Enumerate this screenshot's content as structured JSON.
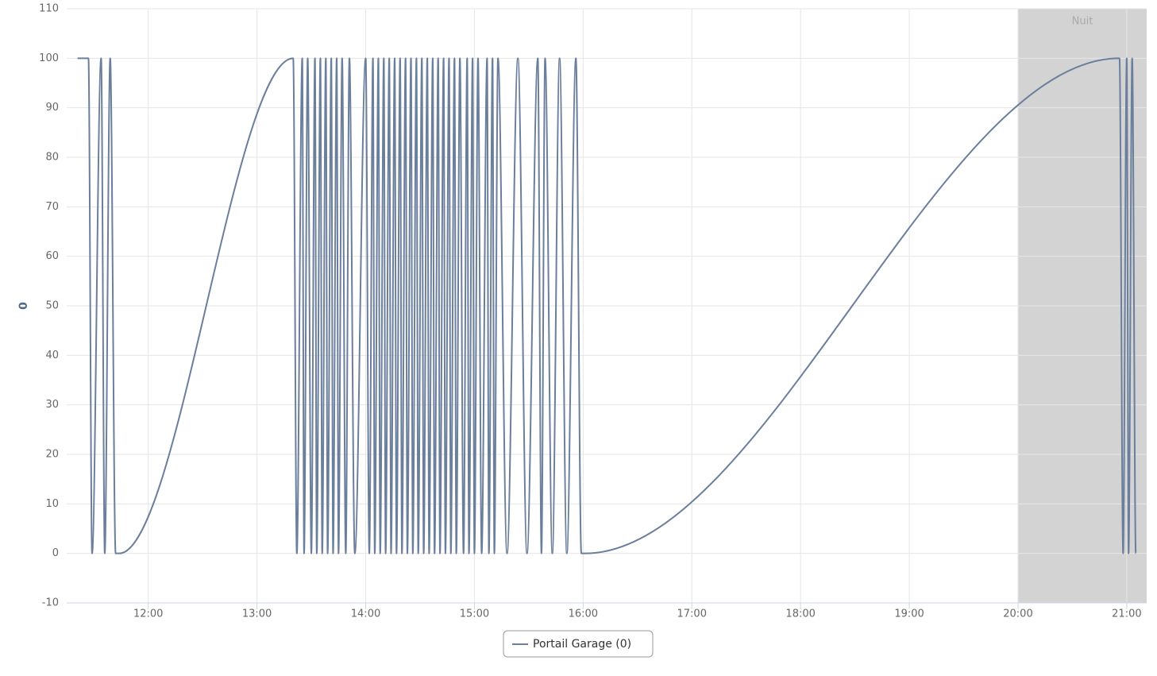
{
  "chart_data": {
    "type": "line",
    "y_label": "0",
    "xlim": [
      "11:15",
      "21:11"
    ],
    "xticks": [
      "12:00",
      "13:00",
      "14:00",
      "15:00",
      "16:00",
      "17:00",
      "18:00",
      "19:00",
      "20:00",
      "21:00"
    ],
    "ylim": [
      -10,
      110
    ],
    "yticks": [
      -10,
      0,
      10,
      20,
      30,
      40,
      50,
      60,
      70,
      80,
      90,
      100,
      110
    ],
    "grid": true,
    "bands": [
      {
        "label": "Nuit",
        "from": "20:00",
        "to": "21:11",
        "color": "#d3d3d3"
      }
    ],
    "x": [
      "11:21",
      "11:27",
      "11:29",
      "11:34",
      "11:36",
      "11:39",
      "11:42",
      "11:44",
      "13:20",
      "13:22",
      "13:25",
      "13:26",
      "13:28",
      "13:30",
      "13:32",
      "13:33",
      "13:35",
      "13:36",
      "13:38",
      "13:39",
      "13:41",
      "13:42",
      "13:44",
      "13:45",
      "13:47",
      "13:49",
      "13:51",
      "13:54",
      "14:00",
      "14:02",
      "14:04",
      "14:05",
      "14:07",
      "14:08",
      "14:10",
      "14:11",
      "14:13",
      "14:14",
      "14:16",
      "14:17",
      "14:19",
      "14:20",
      "14:22",
      "14:23",
      "14:25",
      "14:26",
      "14:28",
      "14:29",
      "14:31",
      "14:32",
      "14:34",
      "14:35",
      "14:37",
      "14:38",
      "14:40",
      "14:41",
      "14:43",
      "14:44",
      "14:46",
      "14:47",
      "14:49",
      "14:50",
      "14:52",
      "14:54",
      "14:56",
      "14:57",
      "14:59",
      "15:00",
      "15:02",
      "15:04",
      "15:07",
      "15:08",
      "15:10",
      "15:11",
      "15:13",
      "15:18",
      "15:24",
      "15:29",
      "15:35",
      "15:37",
      "15:39",
      "15:43",
      "15:47",
      "15:51",
      "15:56",
      "15:59",
      "16:01",
      "20:56",
      "20:58",
      "21:00",
      "21:01",
      "21:03",
      "21:05"
    ],
    "series": [
      {
        "name": "Portail Garage (0)",
        "color": "#6b7f9c",
        "values": [
          100,
          100,
          0,
          100,
          0,
          100,
          0,
          0,
          100,
          0,
          100,
          0,
          100,
          0,
          100,
          0,
          100,
          0,
          100,
          0,
          100,
          0,
          100,
          0,
          100,
          0,
          100,
          0,
          100,
          0,
          100,
          0,
          100,
          0,
          100,
          0,
          100,
          0,
          100,
          0,
          100,
          0,
          100,
          0,
          100,
          0,
          100,
          0,
          100,
          0,
          100,
          0,
          100,
          0,
          100,
          0,
          100,
          0,
          100,
          0,
          100,
          0,
          100,
          0,
          100,
          0,
          100,
          0,
          100,
          0,
          100,
          0,
          100,
          0,
          100,
          0,
          100,
          0,
          100,
          0,
          100,
          0,
          100,
          0,
          100,
          0,
          0,
          100,
          0,
          100,
          0,
          100,
          0
        ]
      }
    ],
    "legend": "bottom"
  }
}
